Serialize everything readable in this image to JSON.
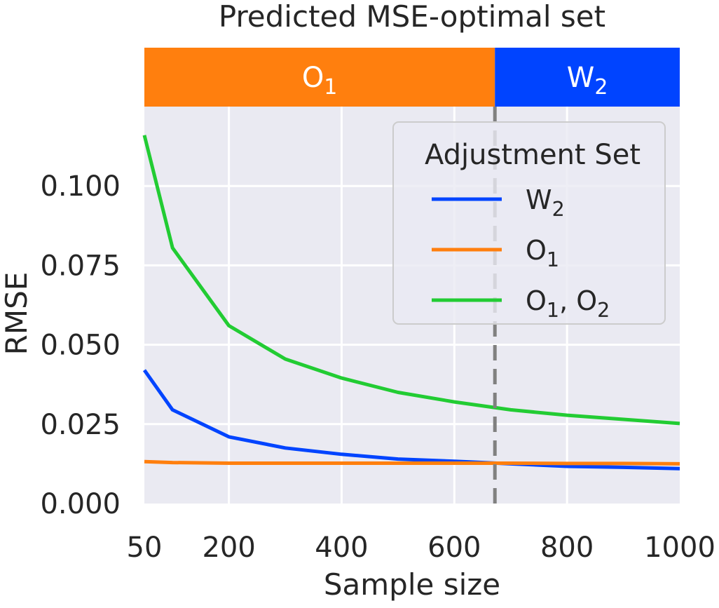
{
  "chart_data": {
    "type": "line",
    "title": "Predicted MSE-optimal set",
    "xlabel": "Sample size",
    "ylabel": "RMSE",
    "xlim": [
      50,
      1000
    ],
    "ylim": [
      0,
      0.125
    ],
    "x_ticks": [
      50,
      200,
      400,
      600,
      800,
      1000
    ],
    "x_tick_labels": [
      "50",
      "200",
      "400",
      "600",
      "800",
      "1000"
    ],
    "y_ticks": [
      0,
      0.025,
      0.05,
      0.075,
      0.1
    ],
    "y_tick_labels": [
      "0.000",
      "0.025",
      "0.050",
      "0.075",
      "0.100"
    ],
    "grid": true,
    "threshold_x": 672,
    "bands": [
      {
        "name": "O",
        "sub": "1",
        "from": 50,
        "to": 672,
        "color": "#ff7f0e"
      },
      {
        "name": "W",
        "sub": "2",
        "from": 672,
        "to": 1000,
        "color": "#0044ff"
      }
    ],
    "x": [
      50,
      100,
      200,
      300,
      400,
      500,
      600,
      700,
      800,
      900,
      1000
    ],
    "series": [
      {
        "name": "W",
        "sub": "2",
        "color": "#0044ff",
        "values": [
          0.042,
          0.0295,
          0.021,
          0.0175,
          0.0155,
          0.014,
          0.0133,
          0.0125,
          0.0117,
          0.0114,
          0.011
        ]
      },
      {
        "name": "O",
        "sub": "1",
        "color": "#ff7f0e",
        "values": [
          0.0132,
          0.0129,
          0.0127,
          0.0127,
          0.0127,
          0.0127,
          0.0127,
          0.0127,
          0.0126,
          0.0126,
          0.0125
        ]
      },
      {
        "name": "O",
        "sub": "1",
        "name2": "O",
        "sub2": "2",
        "color": "#22cc33",
        "values": [
          0.116,
          0.0805,
          0.056,
          0.0455,
          0.0395,
          0.035,
          0.032,
          0.0295,
          0.0278,
          0.0265,
          0.0252
        ]
      }
    ],
    "legend": {
      "title": "Adjustment Set",
      "placement": "top-right"
    }
  }
}
